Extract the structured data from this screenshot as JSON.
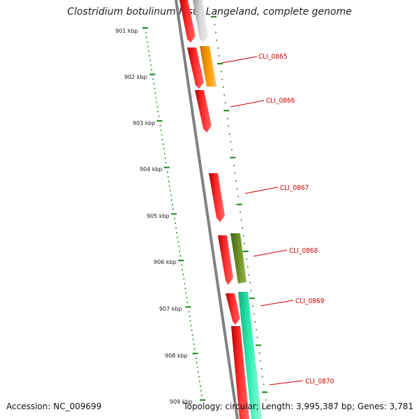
{
  "title": "Clostridium botulinum F str. Langeland, complete genome",
  "accession": "Accession: NC_009699",
  "summary": "Topology: circular; Length: 3,995,387 bp; Genes: 3,781",
  "ticks": [
    "901 kbp",
    "902 kbp",
    "903 kbp",
    "904 kbp",
    "905 kbp",
    "906 kbp",
    "907 kbp",
    "908 kbp",
    "909 kbp"
  ],
  "labels": [
    "CLI_0865",
    "CLI_0866",
    "CLI_0867",
    "CLI_0868",
    "CLI_0869",
    "CLI_0870"
  ],
  "colors": {
    "backbone": "#808080",
    "tick": "#2a8a2a",
    "cds_red": "#ff0000",
    "gene_gray": "#c8c8c8",
    "gene_orange": "#ff9900",
    "gene_olive": "#6b8e23",
    "gene_aqua": "#1ee8a8",
    "label": "#cc0000"
  }
}
